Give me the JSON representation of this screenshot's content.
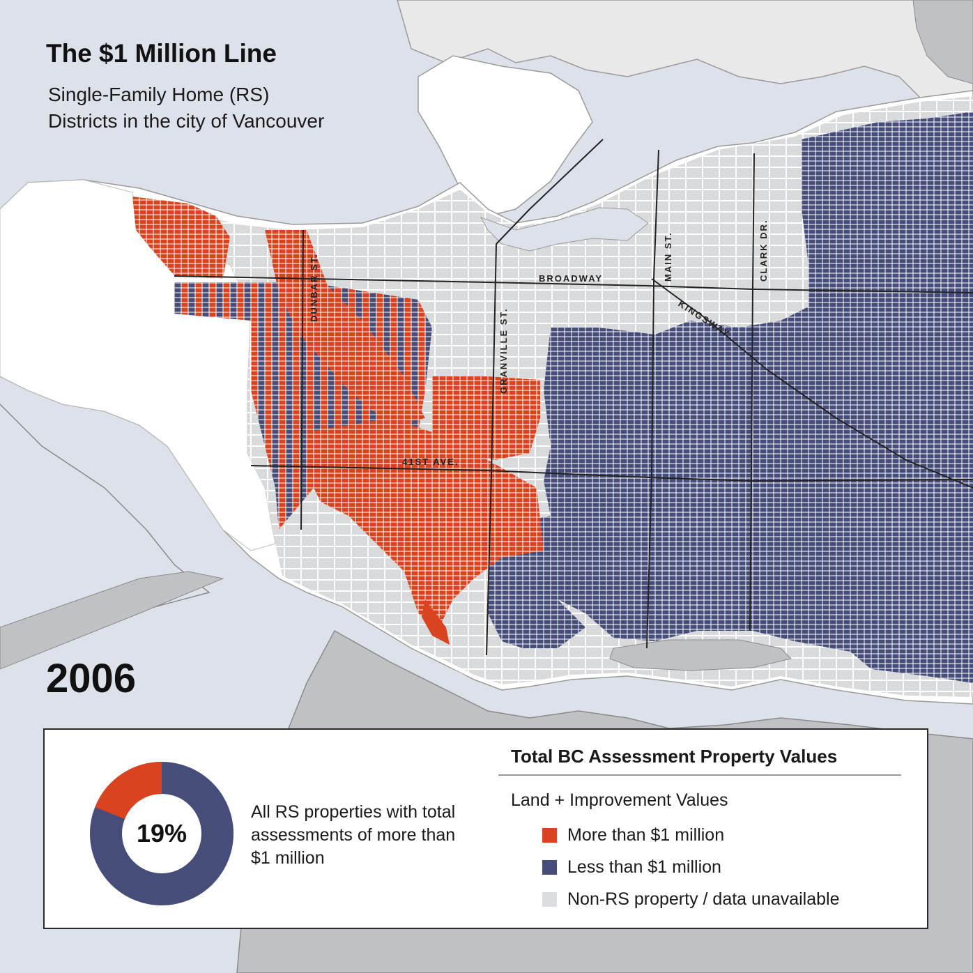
{
  "title": "The $1 Million Line",
  "subtitle_line1": "Single-Family Home (RS)",
  "subtitle_line2": "Districts in the city of Vancouver",
  "year": "2006",
  "colors": {
    "water": "#dde1ea",
    "land": "#ffffff",
    "non_rs": "#d9dadc",
    "above_1m": "#d9431f",
    "below_1m": "#464d78",
    "road": "#222222",
    "outside_city": "#bfc1c4"
  },
  "roads": {
    "broadway": "BROADWAY",
    "kingsway": "KINGSWAY",
    "dunbar": "DUNBAR ST.",
    "granville": "GRANVILLE ST.",
    "main": "MAIN ST.",
    "clark": "CLARK DR.",
    "ave41": "41ST AVE."
  },
  "summary": {
    "percent_value": 19,
    "percent_label": "19%",
    "description": "All RS properties with total assessments of more than $1 million"
  },
  "legend": {
    "title": "Total BC Assessment Property Values",
    "subtitle": "Land + Improvement Values",
    "items": [
      {
        "label": "More than $1 million",
        "color": "#d9431f"
      },
      {
        "label": "Less than $1 million",
        "color": "#464d78"
      },
      {
        "label": "Non-RS property / data unavailable",
        "color": "#dcdde0"
      }
    ]
  }
}
